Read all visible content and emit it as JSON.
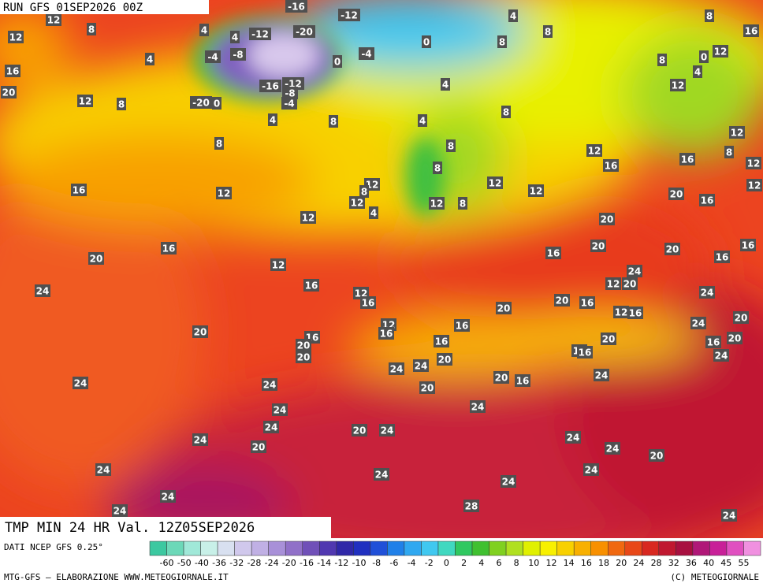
{
  "header": {
    "run": "RUN GFS 01SEP2026 00Z",
    "title": "TMP MIN 24 HR Val. 12Z05SEP2026"
  },
  "footer": {
    "source": "DATI NCEP GFS 0.25°",
    "credit": "MTG-GFS — ELABORAZIONE WWW.METEOGIORNALE.IT",
    "copyright": "(C) METEOGIORNALE"
  },
  "colorbar": {
    "ticks": [
      -60,
      -50,
      -40,
      -36,
      -32,
      -28,
      -24,
      -20,
      -16,
      -14,
      -12,
      -10,
      -8,
      -6,
      -4,
      -2,
      0,
      2,
      4,
      6,
      8,
      10,
      12,
      14,
      16,
      18,
      20,
      24,
      28,
      32,
      36,
      40,
      45,
      55
    ],
    "colors": [
      "#3cc8a0",
      "#6cd8b8",
      "#a0e8d8",
      "#c8f0e8",
      "#d8e0f0",
      "#d0c8ec",
      "#c0b0e4",
      "#a890d8",
      "#9070c8",
      "#7050b8",
      "#5038b0",
      "#3028a8",
      "#2030c0",
      "#2050d8",
      "#2080e8",
      "#30a8f0",
      "#40c8f0",
      "#40d8c0",
      "#30c860",
      "#40c030",
      "#80d020",
      "#b0e020",
      "#e0f000",
      "#f8f000",
      "#f8d000",
      "#f8b000",
      "#f89000",
      "#f06810",
      "#e84818",
      "#d82820",
      "#c01830",
      "#a81040",
      "#b01878",
      "#c82098",
      "#e050c0",
      "#f090e0"
    ]
  },
  "contour_labels": [
    12,
    8,
    12,
    4,
    4,
    -12,
    -20,
    -16,
    -12,
    4,
    8,
    16,
    8,
    -4,
    -8,
    -4,
    0,
    0,
    8,
    4,
    16,
    12,
    8,
    20,
    -20,
    0,
    -16,
    -12,
    -8,
    -4,
    4,
    4,
    8,
    8,
    8,
    0,
    12,
    4,
    12,
    12,
    8,
    4,
    8,
    12,
    16,
    16,
    8,
    12,
    12,
    8,
    16,
    12,
    12,
    8,
    12,
    4,
    12,
    8,
    12,
    12,
    20,
    16,
    20,
    12,
    16,
    20,
    12,
    16,
    20,
    20,
    16,
    16,
    24,
    16,
    24,
    12,
    16,
    12,
    20,
    24,
    20,
    20,
    16,
    12,
    16,
    24,
    20,
    20,
    12,
    16,
    16,
    16,
    20,
    20,
    16,
    20,
    16,
    20,
    12,
    16,
    24,
    24,
    24,
    20,
    24,
    20,
    16,
    24,
    24,
    20,
    24,
    24,
    24,
    20,
    24,
    24,
    24,
    20,
    24,
    20,
    24,
    24,
    24,
    24,
    24,
    28,
    24,
    24,
    24
  ]
}
